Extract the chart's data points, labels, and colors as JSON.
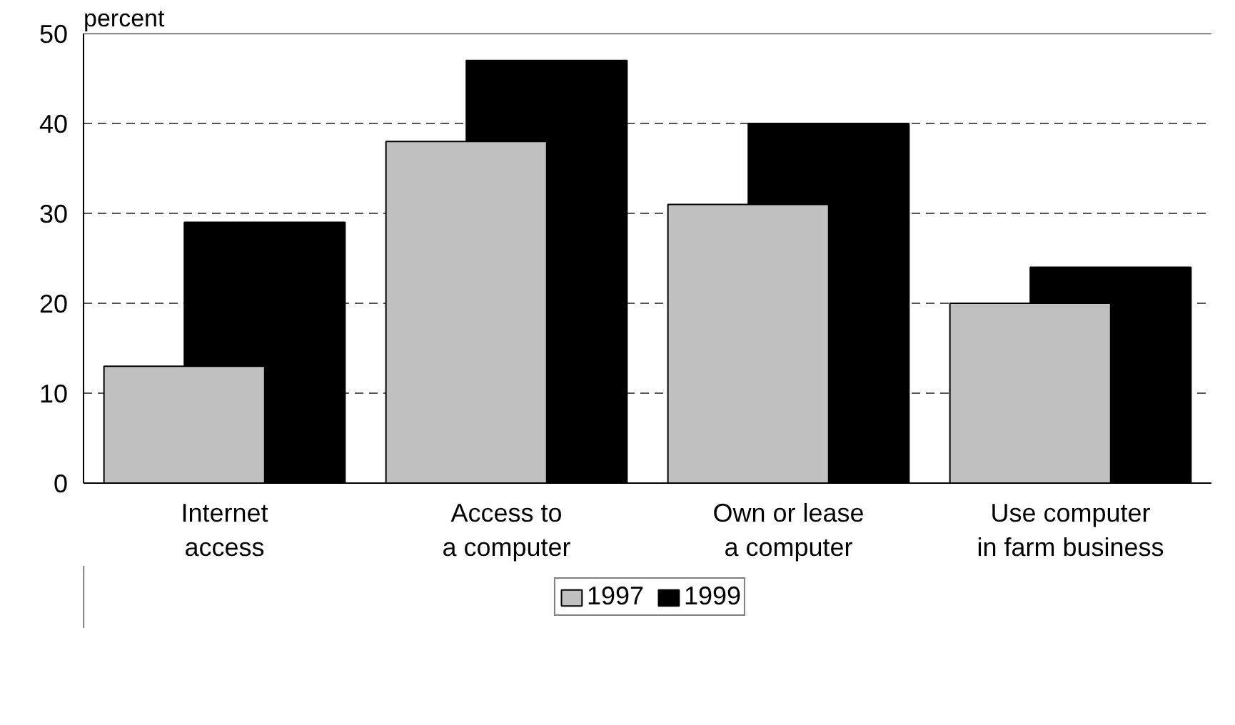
{
  "chart_data": {
    "type": "bar",
    "ylabel": "percent",
    "categories": [
      "Internet\naccess",
      "Access to\na computer",
      "Own or lease\na computer",
      "Use computer\nin farm business"
    ],
    "series": [
      {
        "name": "1997",
        "color": "#c0c0c0",
        "values": [
          13,
          38,
          31,
          20
        ]
      },
      {
        "name": "1999",
        "color": "#000000",
        "values": [
          29,
          47,
          40,
          24
        ]
      }
    ],
    "ylim": [
      0,
      50
    ],
    "yticks": [
      0,
      10,
      20,
      30,
      40,
      50
    ],
    "grid": "y",
    "legend": "bottom"
  }
}
